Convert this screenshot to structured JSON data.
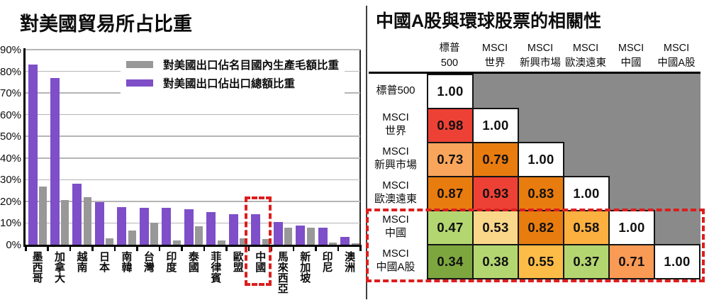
{
  "layout_colors": {
    "background": "#ffffff",
    "divider": "#3f3f3f",
    "gridline": "#b5b5b5",
    "highlight_red": "#dc1e1e"
  },
  "chart_data": [
    {
      "type": "bar",
      "title": "對美國貿易所占比重",
      "categories": [
        "墨西哥",
        "加拿大",
        "越南",
        "日本",
        "南韓",
        "台灣",
        "印度",
        "泰國",
        "菲律賓",
        "歐盟",
        "中國",
        "馬來西亞",
        "新加坡",
        "印尼",
        "澳洲"
      ],
      "series": [
        {
          "name": "對美國出口佔名目國內生產毛額比重",
          "color": "#989898",
          "values": [
            27,
            20.5,
            22,
            3,
            6.5,
            10,
            2,
            8.5,
            2,
            3,
            2.5,
            8,
            8,
            1,
            0.5
          ]
        },
        {
          "name": "對美國出口佔出口總額比重",
          "color": "#7e4fc8",
          "values": [
            83,
            77,
            28,
            19.5,
            17.5,
            17,
            17,
            16.5,
            15,
            14,
            14,
            10.5,
            9,
            8,
            3.5
          ]
        }
      ],
      "ylim": [
        0,
        90
      ],
      "yticks": [
        "0%",
        "10%",
        "20%",
        "30%",
        "40%",
        "50%",
        "60%",
        "70%",
        "80%",
        "90%"
      ],
      "grid": true,
      "legend_position": "top-right-inside",
      "highlight": {
        "category": "中國",
        "shape": "red-dashed-box",
        "color": "#dc1e1e"
      }
    },
    {
      "type": "heatmap",
      "title": "中國A股與環球股票的相關性",
      "columns": [
        "標普\n500",
        "MSCI\n世界",
        "MSCI\n新興市場",
        "MSCI\n歐澳遠東",
        "MSCI\n中國",
        "MSCI\n中國A股"
      ],
      "rows": [
        "標普500",
        "MSCI\n世界",
        "MSCI\n新興市場",
        "MSCI\n歐澳遠東",
        "MSCI\n中國",
        "MSCI\n中國A股"
      ],
      "matrix": [
        [
          1.0
        ],
        [
          0.98,
          1.0
        ],
        [
          0.73,
          0.79,
          1.0
        ],
        [
          0.87,
          0.93,
          0.83,
          1.0
        ],
        [
          0.47,
          0.53,
          0.82,
          0.58,
          1.0
        ],
        [
          0.34,
          0.38,
          0.55,
          0.37,
          0.71,
          1.0
        ]
      ],
      "cell_colors": [
        [
          "#ffffff"
        ],
        [
          "#ee4136",
          "#ffffff"
        ],
        [
          "#f9a55b",
          "#e87c0f",
          "#ffffff"
        ],
        [
          "#e87c0f",
          "#ee4136",
          "#e87c0f",
          "#ffffff"
        ],
        [
          "#b4d670",
          "#fbd78a",
          "#e87c0f",
          "#fbb040",
          "#ffffff"
        ],
        [
          "#7ea63f",
          "#b4d670",
          "#fcbc47",
          "#b4d670",
          "#f99a55",
          "#ffffff"
        ]
      ],
      "empty_color": "#8a8a8a",
      "highlight": {
        "rows": [
          "MSCI中國",
          "MSCI中國A股"
        ],
        "shape": "red-dashed-box",
        "color": "#dc1e1e"
      }
    }
  ]
}
